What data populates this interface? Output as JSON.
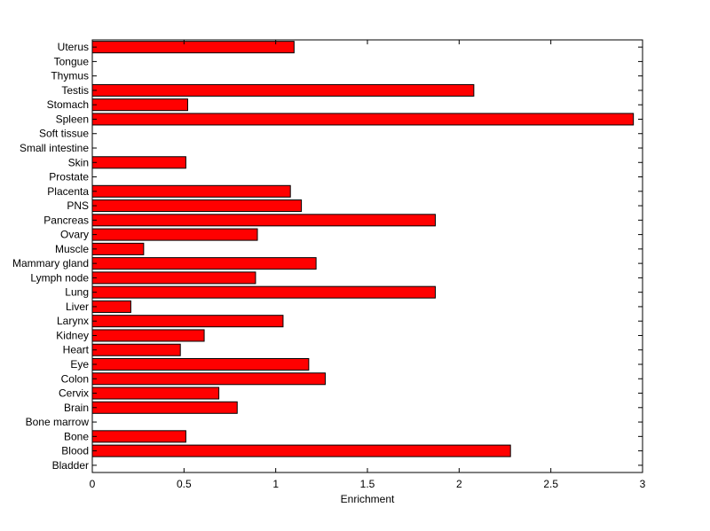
{
  "chart_data": {
    "type": "bar",
    "orientation": "horizontal",
    "title": "",
    "xlabel": "Enrichment",
    "ylabel": "",
    "xlim": [
      0,
      3
    ],
    "xticks": [
      0,
      0.5,
      1,
      1.5,
      2,
      2.5,
      3
    ],
    "xtick_labels": [
      "0",
      "0.5",
      "1",
      "1.5",
      "2",
      "2.5",
      "3"
    ],
    "grid": false,
    "legend": "none",
    "bar_color": "#ff0000",
    "bar_edge_color": "#000000",
    "categories": [
      "Bladder",
      "Blood",
      "Bone",
      "Bone marrow",
      "Brain",
      "Cervix",
      "Colon",
      "Eye",
      "Heart",
      "Kidney",
      "Larynx",
      "Liver",
      "Lung",
      "Lymph node",
      "Mammary gland",
      "Muscle",
      "Ovary",
      "Pancreas",
      "PNS",
      "Placenta",
      "Prostate",
      "Skin",
      "Small intestine",
      "Soft tissue",
      "Spleen",
      "Stomach",
      "Testis",
      "Thymus",
      "Tongue",
      "Uterus"
    ],
    "values": [
      0,
      2.28,
      0.51,
      0,
      0.79,
      0.69,
      1.27,
      1.18,
      0.48,
      0.61,
      1.04,
      0.21,
      1.87,
      0.89,
      1.22,
      0.28,
      0.9,
      1.87,
      1.14,
      1.08,
      0,
      0.51,
      0,
      0,
      2.95,
      0.52,
      2.08,
      0,
      0,
      1.1
    ]
  }
}
